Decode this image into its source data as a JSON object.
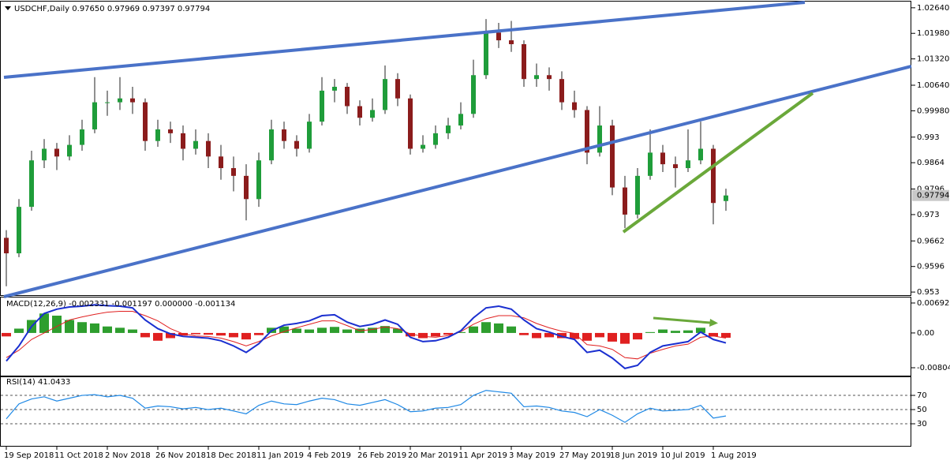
{
  "chart_data": [
    {
      "type": "candlestick",
      "title": "USDCHF,Daily  0.97650 0.97969 0.97397 0.97794",
      "categories": [
        "19 Sep 2018",
        null,
        null,
        null,
        "11 Oct 2018",
        null,
        null,
        null,
        "2 Nov 2018",
        null,
        null,
        null,
        "26 Nov 2018",
        null,
        null,
        null,
        "18 Dec 2018",
        null,
        null,
        null,
        "11 Jan 2019",
        null,
        null,
        null,
        "4 Feb 2019",
        null,
        null,
        null,
        "26 Feb 2019",
        null,
        null,
        null,
        "20 Mar 2019",
        null,
        null,
        null,
        "11 Apr 2019",
        null,
        null,
        null,
        "3 May 2019",
        null,
        null,
        null,
        "27 May 2019",
        null,
        null,
        null,
        "18 Jun 2019",
        null,
        null,
        null,
        "10 Jul 2019",
        null,
        null,
        null,
        "1 Aug 2019",
        null
      ],
      "ohlc": [
        [
          0.967,
          0.969,
          0.9545,
          0.963
        ],
        [
          0.963,
          0.977,
          0.962,
          0.975
        ],
        [
          0.975,
          0.9895,
          0.974,
          0.987
        ],
        [
          0.987,
          0.9925,
          0.985,
          0.99
        ],
        [
          0.99,
          0.9915,
          0.9845,
          0.988
        ],
        [
          0.988,
          0.9935,
          0.987,
          0.991
        ],
        [
          0.991,
          0.9975,
          0.9895,
          0.995
        ],
        [
          0.995,
          1.0085,
          0.994,
          1.002
        ],
        [
          1.002,
          1.005,
          0.9985,
          1.002
        ],
        [
          1.002,
          1.0085,
          1.0,
          1.003
        ],
        [
          1.003,
          1.006,
          0.999,
          1.002
        ],
        [
          1.002,
          1.003,
          0.9895,
          0.992
        ],
        [
          0.992,
          0.9975,
          0.9905,
          0.995
        ],
        [
          0.995,
          0.997,
          0.9915,
          0.994
        ],
        [
          0.994,
          0.996,
          0.987,
          0.99
        ],
        [
          0.99,
          0.995,
          0.9885,
          0.992
        ],
        [
          0.992,
          0.994,
          0.985,
          0.988
        ],
        [
          0.988,
          0.991,
          0.982,
          0.985
        ],
        [
          0.985,
          0.988,
          0.979,
          0.983
        ],
        [
          0.983,
          0.986,
          0.9715,
          0.977
        ],
        [
          0.977,
          0.989,
          0.975,
          0.987
        ],
        [
          0.987,
          0.9975,
          0.986,
          0.995
        ],
        [
          0.995,
          0.997,
          0.99,
          0.992
        ],
        [
          0.992,
          0.9935,
          0.988,
          0.99
        ],
        [
          0.99,
          0.999,
          0.989,
          0.997
        ],
        [
          0.997,
          1.0085,
          0.996,
          1.005
        ],
        [
          1.005,
          1.008,
          1.002,
          1.006
        ],
        [
          1.006,
          1.007,
          0.999,
          1.001
        ],
        [
          1.001,
          1.0025,
          0.996,
          0.998
        ],
        [
          0.998,
          1.003,
          0.997,
          1.0
        ],
        [
          1.0,
          1.0115,
          0.999,
          1.008
        ],
        [
          1.008,
          1.0095,
          1.001,
          1.003
        ],
        [
          1.003,
          1.004,
          0.9885,
          0.99
        ],
        [
          0.99,
          0.9935,
          0.989,
          0.991
        ],
        [
          0.991,
          0.996,
          0.99,
          0.994
        ],
        [
          0.994,
          0.998,
          0.9925,
          0.996
        ],
        [
          0.996,
          1.002,
          0.995,
          0.999
        ],
        [
          0.999,
          1.013,
          0.998,
          1.009
        ],
        [
          1.009,
          1.0235,
          1.008,
          1.02
        ],
        [
          1.02,
          1.0225,
          1.016,
          1.018
        ],
        [
          1.018,
          1.023,
          1.015,
          1.017
        ],
        [
          1.017,
          1.018,
          1.006,
          1.008
        ],
        [
          1.008,
          1.012,
          1.006,
          1.009
        ],
        [
          1.009,
          1.011,
          1.005,
          1.008
        ],
        [
          1.008,
          1.01,
          1.0,
          1.002
        ],
        [
          1.002,
          1.005,
          0.998,
          1.0
        ],
        [
          1.0,
          1.001,
          0.986,
          0.989
        ],
        [
          0.989,
          1.001,
          0.988,
          0.996
        ],
        [
          0.996,
          0.9975,
          0.978,
          0.98
        ],
        [
          0.98,
          0.983,
          0.9695,
          0.973
        ],
        [
          0.973,
          0.985,
          0.972,
          0.983
        ],
        [
          0.983,
          0.995,
          0.982,
          0.989
        ],
        [
          0.989,
          0.991,
          0.984,
          0.986
        ],
        [
          0.986,
          0.988,
          0.98,
          0.985
        ],
        [
          0.985,
          0.995,
          0.984,
          0.987
        ],
        [
          0.987,
          0.997,
          0.986,
          0.99
        ],
        [
          0.99,
          0.991,
          0.9705,
          0.976
        ],
        [
          0.9765,
          0.97969,
          0.97397,
          0.97794
        ]
      ],
      "up_color": "#1f9d3a",
      "down_color": "#8b1c1c",
      "wick_color": "#222222",
      "last_price": 0.97794,
      "ylim": [
        0.952,
        1.028
      ],
      "yticks": [
        {
          "value": 1.0264,
          "label": "1.02640"
        },
        {
          "value": 1.0198,
          "label": "1.01980"
        },
        {
          "value": 1.0132,
          "label": "1.01320"
        },
        {
          "value": 1.0064,
          "label": "1.00640"
        },
        {
          "value": 0.9998,
          "label": "0.99980"
        },
        0.993,
        0.9864,
        0.9796,
        0.973,
        0.9662,
        0.9596,
        0.953
      ]
    },
    {
      "type": "macd",
      "title": "MACD(12,26,9) -0.002331 -0.001197 0.000000 -0.001134",
      "histogram": [
        -0.0008,
        0.001,
        0.003,
        0.0045,
        0.004,
        0.003,
        0.0025,
        0.0022,
        0.0015,
        0.0012,
        0.0008,
        -0.001,
        -0.0018,
        -0.0012,
        -0.0006,
        -0.0003,
        -0.0004,
        -0.0006,
        -0.001,
        -0.0015,
        -0.0005,
        0.0012,
        0.0015,
        0.001,
        0.0008,
        0.0012,
        0.0014,
        0.0008,
        0.001,
        0.0012,
        0.0016,
        0.001,
        -0.0008,
        -0.0012,
        -0.0008,
        -0.0004,
        0.0002,
        0.0015,
        0.0025,
        0.0022,
        0.0015,
        -0.0005,
        -0.0012,
        -0.001,
        -0.0012,
        -0.0014,
        -0.0018,
        -0.001,
        -0.002,
        -0.0025,
        -0.0015,
        0.0002,
        0.0008,
        0.0005,
        0.0006,
        0.0012,
        -0.0008,
        -0.0011
      ],
      "histogram_up_color": "#2e9e2e",
      "histogram_down_color": "#e02020",
      "main": {
        "color": "#1a2fd0",
        "values": [
          -0.0065,
          -0.003,
          0.0015,
          0.0045,
          0.0055,
          0.006,
          0.0062,
          0.0065,
          0.0063,
          0.0062,
          0.0058,
          0.003,
          0.001,
          -0.0002,
          -0.0008,
          -0.001,
          -0.0012,
          -0.0018,
          -0.003,
          -0.0045,
          -0.0025,
          0.0005,
          0.0018,
          0.0022,
          0.0028,
          0.004,
          0.0042,
          0.0025,
          0.0015,
          0.002,
          0.003,
          0.002,
          -0.001,
          -0.002,
          -0.0018,
          -0.001,
          0.0005,
          0.0035,
          0.0058,
          0.0062,
          0.0055,
          0.003,
          0.001,
          0.0002,
          -0.0008,
          -0.0015,
          -0.0045,
          -0.004,
          -0.0058,
          -0.0082,
          -0.0075,
          -0.0045,
          -0.003,
          -0.0025,
          -0.002,
          0.0002,
          -0.0015,
          -0.0023
        ]
      },
      "signal": {
        "color": "#e02020",
        "values": [
          -0.0057,
          -0.004,
          -0.0015,
          0.0,
          0.0015,
          0.003,
          0.0037,
          0.0043,
          0.0048,
          0.005,
          0.005,
          0.004,
          0.0028,
          0.001,
          -0.0002,
          -0.0007,
          -0.0008,
          -0.0012,
          -0.002,
          -0.003,
          -0.002,
          -0.0007,
          0.0003,
          0.0012,
          0.002,
          0.0028,
          0.0028,
          0.0017,
          0.0005,
          0.0008,
          0.0014,
          0.001,
          -0.0002,
          -0.0008,
          -0.001,
          -0.0006,
          0.0003,
          0.002,
          0.0033,
          0.004,
          0.004,
          0.0035,
          0.0022,
          0.0012,
          0.0004,
          -0.0001,
          -0.0027,
          -0.003,
          -0.0038,
          -0.0057,
          -0.006,
          -0.0047,
          -0.0038,
          -0.003,
          -0.0026,
          -0.001,
          -0.0007,
          -0.0012
        ]
      },
      "ylim": [
        -0.01005,
        0.0082
      ],
      "yticks": [
        0.006927,
        {
          "value": 0,
          "label": "0.00"
        },
        -0.008042
      ]
    },
    {
      "type": "line",
      "title": "RSI(14) 41.0433",
      "color": "#1e88e5",
      "values": [
        37,
        58,
        65,
        68,
        62,
        66,
        70,
        71,
        68,
        70,
        66,
        52,
        55,
        54,
        51,
        53,
        50,
        52,
        48,
        44,
        56,
        62,
        58,
        57,
        62,
        66,
        64,
        58,
        56,
        60,
        64,
        57,
        47,
        48,
        52,
        53,
        57,
        70,
        77,
        75,
        73,
        54,
        55,
        53,
        48,
        46,
        40,
        50,
        42,
        32,
        44,
        52,
        48,
        49,
        50,
        56,
        38,
        41
      ],
      "ylim": [
        -2.2,
        95.6
      ],
      "yticks": [
        70,
        50,
        30
      ],
      "levels_dashed": true
    }
  ]
}
